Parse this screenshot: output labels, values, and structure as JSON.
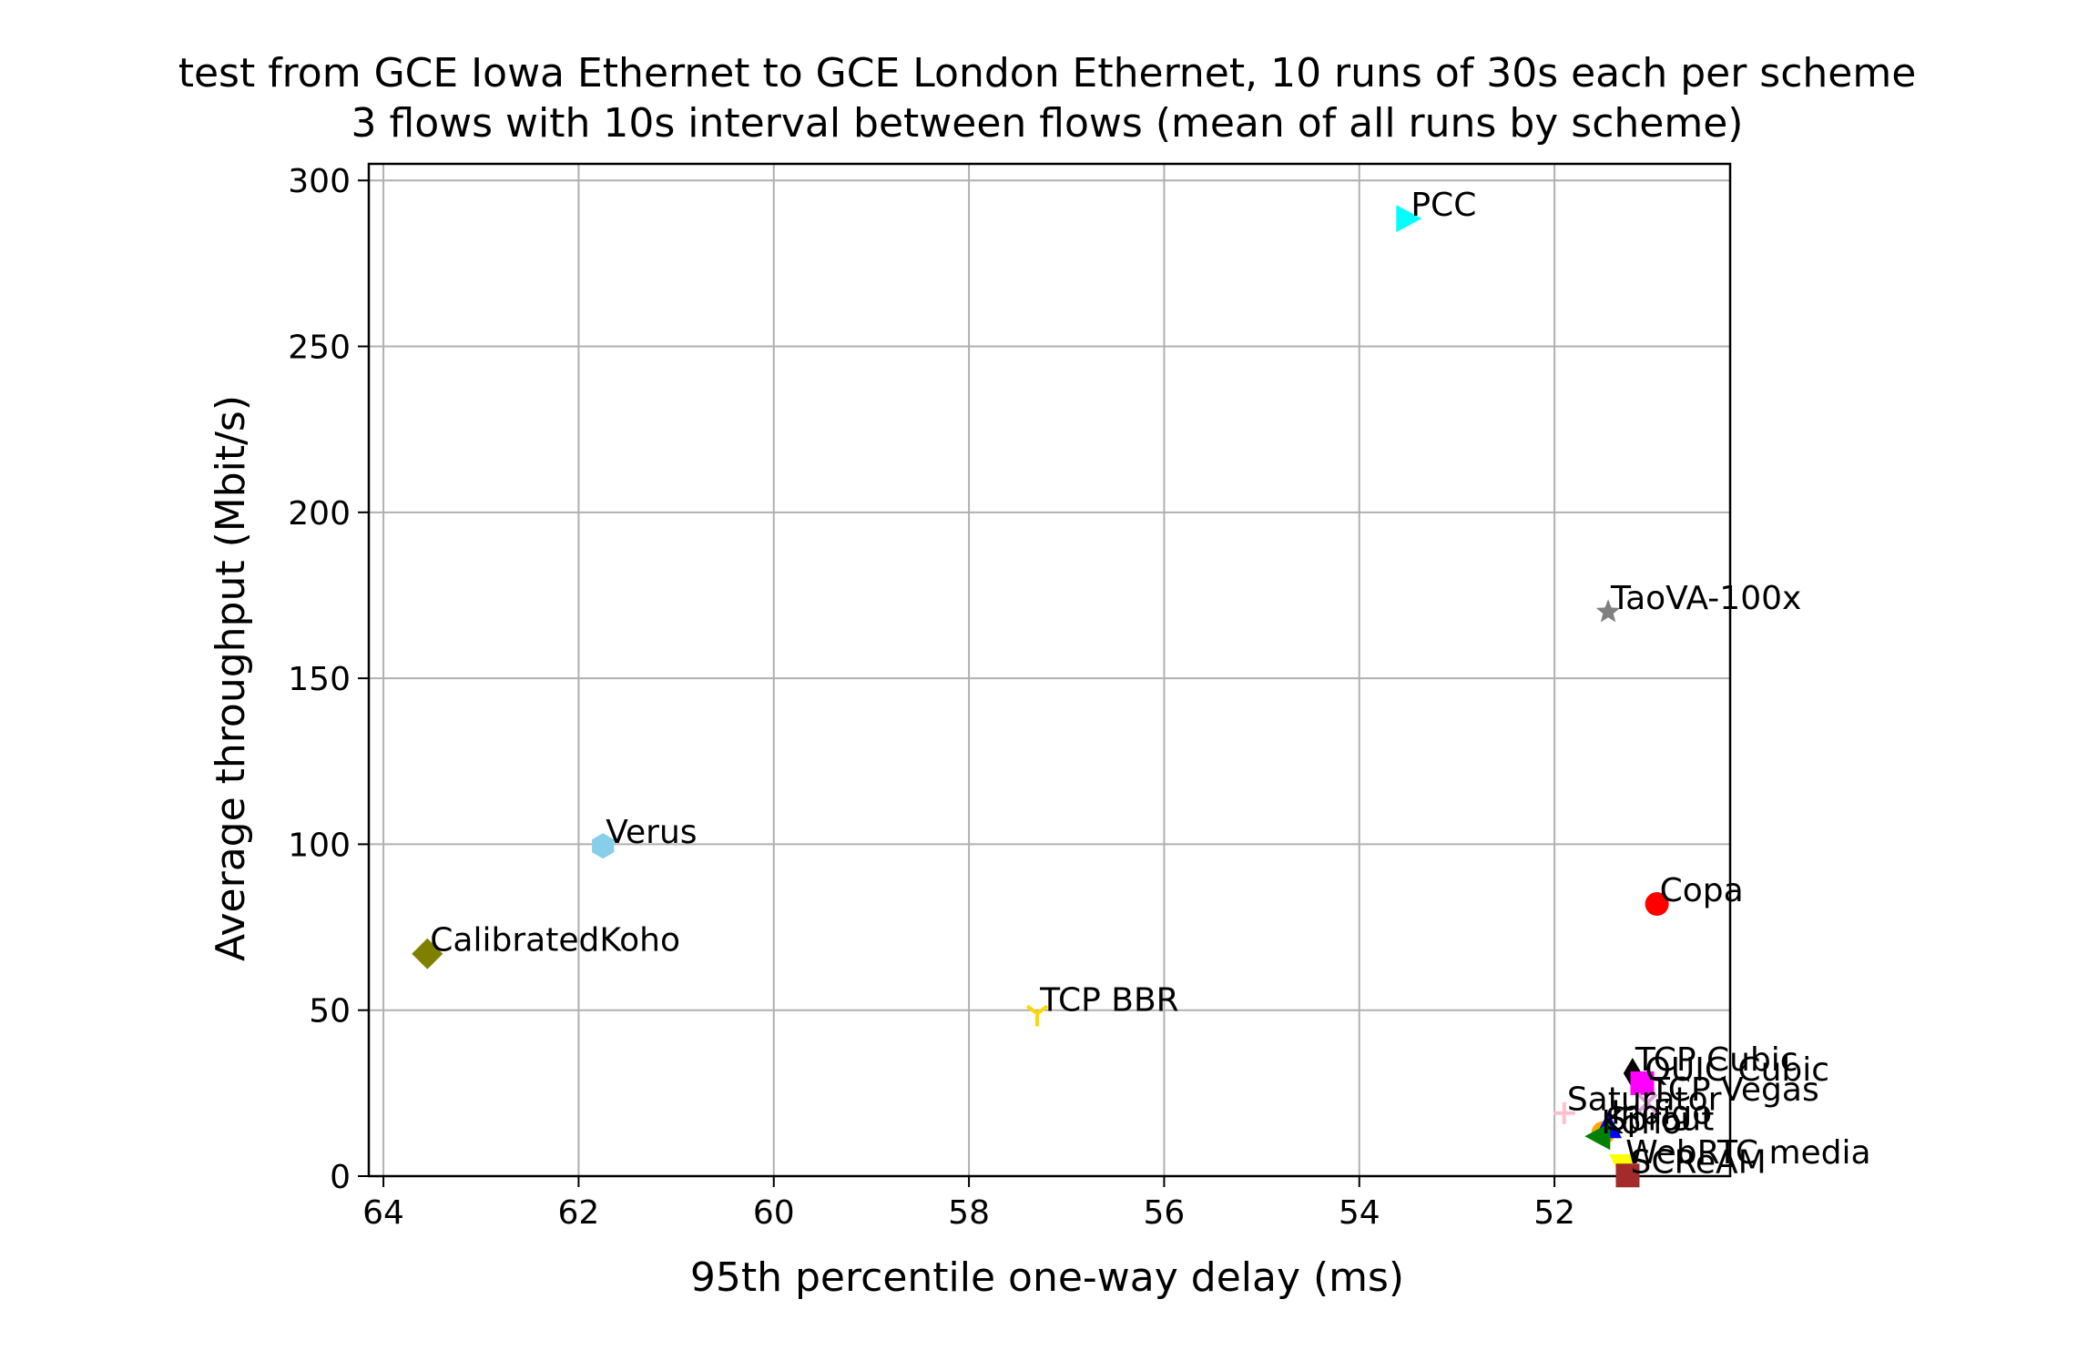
{
  "chart_data": {
    "type": "scatter",
    "title": "test from GCE Iowa Ethernet to GCE London Ethernet, 10 runs of 30s each per scheme",
    "subtitle": "3 flows with 10s interval between flows (mean of all runs by scheme)",
    "xlabel": "95th percentile one-way delay (ms)",
    "ylabel": "Average throughput (Mbit/s)",
    "x_inverted": true,
    "xlim": [
      64.15,
      50.2
    ],
    "ylim": [
      0,
      305
    ],
    "x_ticks": [
      64,
      62,
      60,
      58,
      56,
      54,
      52
    ],
    "y_ticks": [
      0,
      50,
      100,
      150,
      200,
      250,
      300
    ],
    "grid": true,
    "points": [
      {
        "label": "PCC",
        "x": 53.5,
        "y": 288.5,
        "color": "#00ffff",
        "marker": "triangle-right"
      },
      {
        "label": "TaoVA-100x",
        "x": 51.45,
        "y": 170,
        "color": "#808080",
        "marker": "star"
      },
      {
        "label": "Verus",
        "x": 61.75,
        "y": 99.5,
        "color": "#87ceeb",
        "marker": "hexagon"
      },
      {
        "label": "Copa",
        "x": 50.95,
        "y": 82,
        "color": "#ff0000",
        "marker": "circle"
      },
      {
        "label": "CalibratedKoho",
        "x": 63.55,
        "y": 67,
        "color": "#808000",
        "marker": "diamond"
      },
      {
        "label": "TCP BBR",
        "x": 57.3,
        "y": 49,
        "color": "#ffd700",
        "marker": "tri-down"
      },
      {
        "label": "TCP Cubic",
        "x": 51.2,
        "y": 31,
        "color": "#000000",
        "marker": "diamond-thin"
      },
      {
        "label": "QUIC Cubic",
        "x": 51.1,
        "y": 28,
        "color": "#ff00ff",
        "marker": "square"
      },
      {
        "label": "TCP Vegas",
        "x": 51.05,
        "y": 22,
        "color": "#dda0dd",
        "marker": "x"
      },
      {
        "label": "Sprout",
        "x": 51.5,
        "y": 13,
        "color": "#ffa500",
        "marker": "circle"
      },
      {
        "label": "Indigo",
        "x": 51.45,
        "y": 15,
        "color": "#0000ff",
        "marker": "triangle-up"
      },
      {
        "label": "Saturator",
        "x": 51.9,
        "y": 19,
        "color": "#ffc0cb",
        "marker": "plus"
      },
      {
        "label": "Koho",
        "x": 51.55,
        "y": 12,
        "color": "#008000",
        "marker": "triangle-left"
      },
      {
        "label": "WebRTC media",
        "x": 51.3,
        "y": 3,
        "color": "#ffff00",
        "marker": "triangle-down"
      },
      {
        "label": "SCReAM",
        "x": 51.25,
        "y": 0.2,
        "color": "#a52a2a",
        "marker": "square"
      }
    ]
  }
}
